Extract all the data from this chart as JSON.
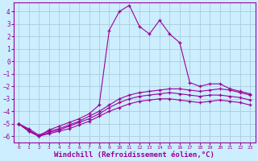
{
  "background_color": "#cceeff",
  "grid_color": "#aaccdd",
  "line_color": "#990099",
  "xlabel": "Windchill (Refroidissement éolien,°C)",
  "xlabel_fontsize": 6.5,
  "yticks": [
    -6,
    -5,
    -4,
    -3,
    -2,
    -1,
    0,
    1,
    2,
    3,
    4
  ],
  "xticks": [
    0,
    1,
    2,
    3,
    4,
    5,
    6,
    7,
    8,
    9,
    10,
    11,
    12,
    13,
    14,
    15,
    16,
    17,
    18,
    19,
    20,
    21,
    22,
    23
  ],
  "xlim": [
    -0.5,
    23.5
  ],
  "ylim": [
    -6.5,
    4.7
  ],
  "series": [
    {
      "x": [
        0,
        1,
        2,
        3,
        4,
        5,
        6,
        7,
        8,
        9,
        10,
        11,
        12,
        13,
        14,
        15,
        16,
        17,
        18,
        19,
        20,
        21,
        22,
        23
      ],
      "y": [
        -5.0,
        -5.6,
        -6.0,
        -5.5,
        -5.2,
        -4.9,
        -4.6,
        -4.2,
        -3.5,
        2.5,
        4.0,
        4.5,
        2.8,
        2.2,
        3.3,
        2.2,
        1.5,
        -1.7,
        -2.0,
        -1.8,
        -1.8,
        -2.2,
        -2.4,
        -2.6
      ]
    },
    {
      "x": [
        0,
        1,
        2,
        3,
        4,
        5,
        6,
        7,
        8,
        9,
        10,
        11,
        12,
        13,
        14,
        15,
        16,
        17,
        18,
        19,
        20,
        21,
        22,
        23
      ],
      "y": [
        -5.0,
        -5.4,
        -5.9,
        -5.6,
        -5.4,
        -5.1,
        -4.8,
        -4.4,
        -4.0,
        -3.5,
        -3.0,
        -2.7,
        -2.5,
        -2.4,
        -2.3,
        -2.2,
        -2.2,
        -2.3,
        -2.4,
        -2.3,
        -2.2,
        -2.3,
        -2.5,
        -2.7
      ]
    },
    {
      "x": [
        0,
        1,
        2,
        3,
        4,
        5,
        6,
        7,
        8,
        9,
        10,
        11,
        12,
        13,
        14,
        15,
        16,
        17,
        18,
        19,
        20,
        21,
        22,
        23
      ],
      "y": [
        -5.0,
        -5.5,
        -6.0,
        -5.7,
        -5.5,
        -5.2,
        -4.9,
        -4.6,
        -4.2,
        -3.7,
        -3.3,
        -3.0,
        -2.8,
        -2.7,
        -2.6,
        -2.5,
        -2.6,
        -2.7,
        -2.8,
        -2.7,
        -2.7,
        -2.8,
        -2.9,
        -3.1
      ]
    },
    {
      "x": [
        0,
        1,
        2,
        3,
        4,
        5,
        6,
        7,
        8,
        9,
        10,
        11,
        12,
        13,
        14,
        15,
        16,
        17,
        18,
        19,
        20,
        21,
        22,
        23
      ],
      "y": [
        -5.0,
        -5.6,
        -6.0,
        -5.8,
        -5.6,
        -5.4,
        -5.1,
        -4.8,
        -4.4,
        -4.0,
        -3.7,
        -3.4,
        -3.2,
        -3.1,
        -3.0,
        -3.0,
        -3.1,
        -3.2,
        -3.3,
        -3.2,
        -3.1,
        -3.2,
        -3.3,
        -3.5
      ]
    }
  ]
}
